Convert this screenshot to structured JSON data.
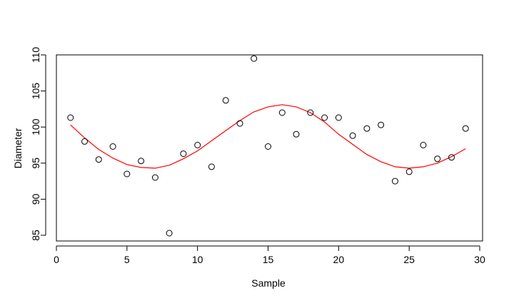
{
  "chart_data": {
    "type": "scatter",
    "xlabel": "Sample",
    "ylabel": "Diameter",
    "xlim": [
      0,
      30
    ],
    "ylim": [
      85,
      110
    ],
    "x_ticks": [
      "0",
      "5",
      "10",
      "15",
      "20",
      "25",
      "30"
    ],
    "y_ticks": [
      "85",
      "90",
      "95",
      "100",
      "105",
      "110"
    ],
    "grid": false,
    "series": [
      {
        "kind": "points",
        "marker": "open-circle",
        "color": "#000000",
        "x": [
          1,
          2,
          3,
          4,
          5,
          6,
          7,
          8,
          9,
          10,
          11,
          12,
          13,
          14,
          15,
          16,
          17,
          18,
          19,
          20,
          21,
          22,
          23,
          24,
          25,
          26,
          27,
          28,
          29
        ],
        "y": [
          101.3,
          98.0,
          95.5,
          97.3,
          93.5,
          95.3,
          93.0,
          85.3,
          96.3,
          97.5,
          94.5,
          103.7,
          100.5,
          109.5,
          97.3,
          102.0,
          99.0,
          102.0,
          101.3,
          101.3,
          98.8,
          99.8,
          100.3,
          92.5,
          93.8,
          97.5,
          95.6,
          95.8,
          99.8
        ]
      },
      {
        "kind": "curve",
        "color": "#ff0000",
        "x": [
          1,
          2,
          3,
          4,
          5,
          6,
          7,
          8,
          9,
          10,
          11,
          12,
          13,
          14,
          15,
          16,
          17,
          18,
          19,
          20,
          21,
          22,
          23,
          24,
          25,
          26,
          27,
          28,
          29
        ],
        "y": [
          100.3,
          98.5,
          96.9,
          95.7,
          94.8,
          94.4,
          94.3,
          94.7,
          95.6,
          96.7,
          98.1,
          99.5,
          100.9,
          102.1,
          102.8,
          103.1,
          102.8,
          102.0,
          100.7,
          99.0,
          97.6,
          96.2,
          95.2,
          94.5,
          94.3,
          94.5,
          95.0,
          95.9,
          97.0
        ]
      }
    ]
  }
}
